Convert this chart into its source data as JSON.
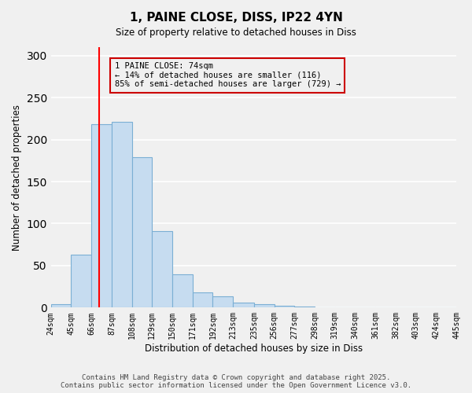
{
  "title": "1, PAINE CLOSE, DISS, IP22 4YN",
  "subtitle": "Size of property relative to detached houses in Diss",
  "xlabel": "Distribution of detached houses by size in Diss",
  "ylabel": "Number of detached properties",
  "bar_color": "#c6dcf0",
  "bar_edge_color": "#7bafd4",
  "bin_edges": [
    24,
    45,
    66,
    87,
    108,
    129,
    150,
    171,
    192,
    213,
    235,
    256,
    277,
    298,
    319,
    340,
    361,
    382,
    403,
    424,
    445
  ],
  "bin_labels": [
    "24sqm",
    "45sqm",
    "66sqm",
    "87sqm",
    "108sqm",
    "129sqm",
    "150sqm",
    "171sqm",
    "192sqm",
    "213sqm",
    "235sqm",
    "256sqm",
    "277sqm",
    "298sqm",
    "319sqm",
    "340sqm",
    "361sqm",
    "382sqm",
    "403sqm",
    "424sqm",
    "445sqm"
  ],
  "bar_heights": [
    4,
    63,
    218,
    221,
    179,
    91,
    40,
    18,
    13,
    6,
    4,
    2,
    1,
    0,
    0,
    0,
    0,
    0,
    0,
    0
  ],
  "vline_x": 74,
  "vline_color": "#ff0000",
  "ylim": [
    0,
    310
  ],
  "yticks": [
    0,
    50,
    100,
    150,
    200,
    250,
    300
  ],
  "annotation_title": "1 PAINE CLOSE: 74sqm",
  "annotation_line1": "← 14% of detached houses are smaller (116)",
  "annotation_line2": "85% of semi-detached houses are larger (729) →",
  "footer_line1": "Contains HM Land Registry data © Crown copyright and database right 2025.",
  "footer_line2": "Contains public sector information licensed under the Open Government Licence v3.0.",
  "background_color": "#f0f0f0",
  "grid_color": "#ffffff"
}
